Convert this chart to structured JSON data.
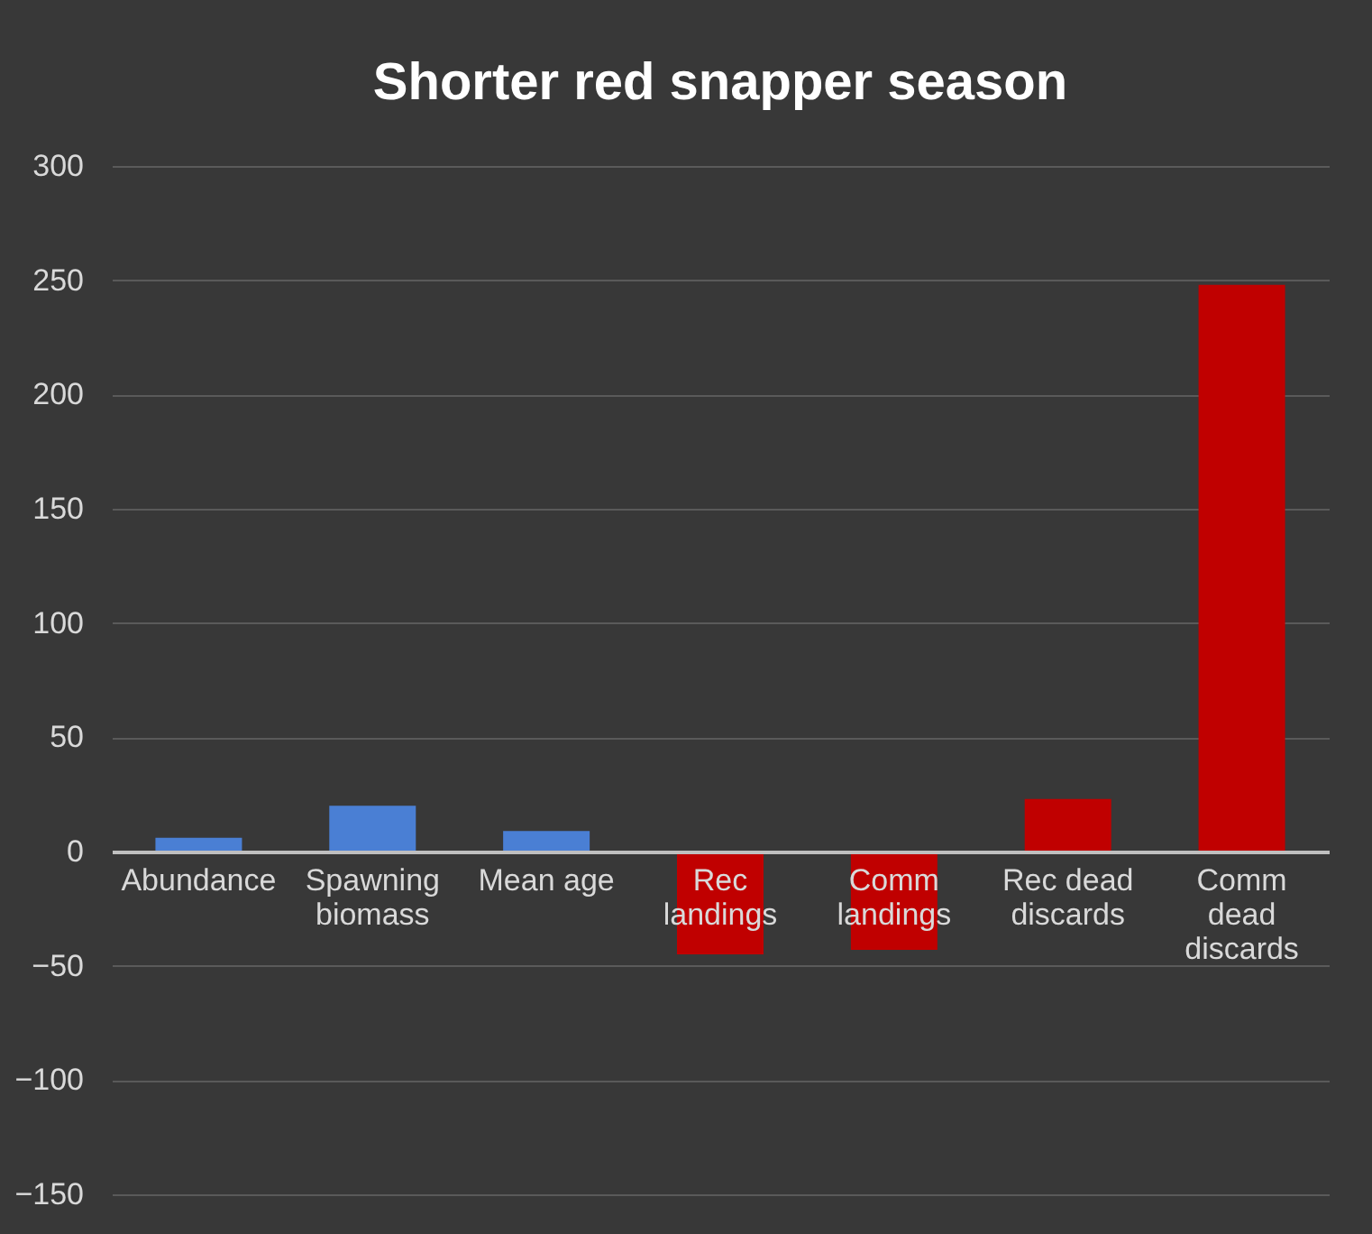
{
  "chart_data": {
    "type": "bar",
    "title": "Shorter red snapper season",
    "categories": [
      "Abundance",
      "Spawning biomass",
      "Mean age",
      "Rec landings",
      "Comm landings",
      "Rec dead discards",
      "Comm dead discards"
    ],
    "values": [
      6,
      20,
      9,
      -45,
      -43,
      23,
      248
    ],
    "colors": [
      "#4a7fd4",
      "#4a7fd4",
      "#4a7fd4",
      "#c00000",
      "#c00000",
      "#c00000",
      "#c00000"
    ],
    "ylim": [
      -150,
      300
    ],
    "yticks": [
      -150,
      -100,
      -50,
      0,
      50,
      100,
      150,
      200,
      250,
      300
    ],
    "grid": true
  }
}
